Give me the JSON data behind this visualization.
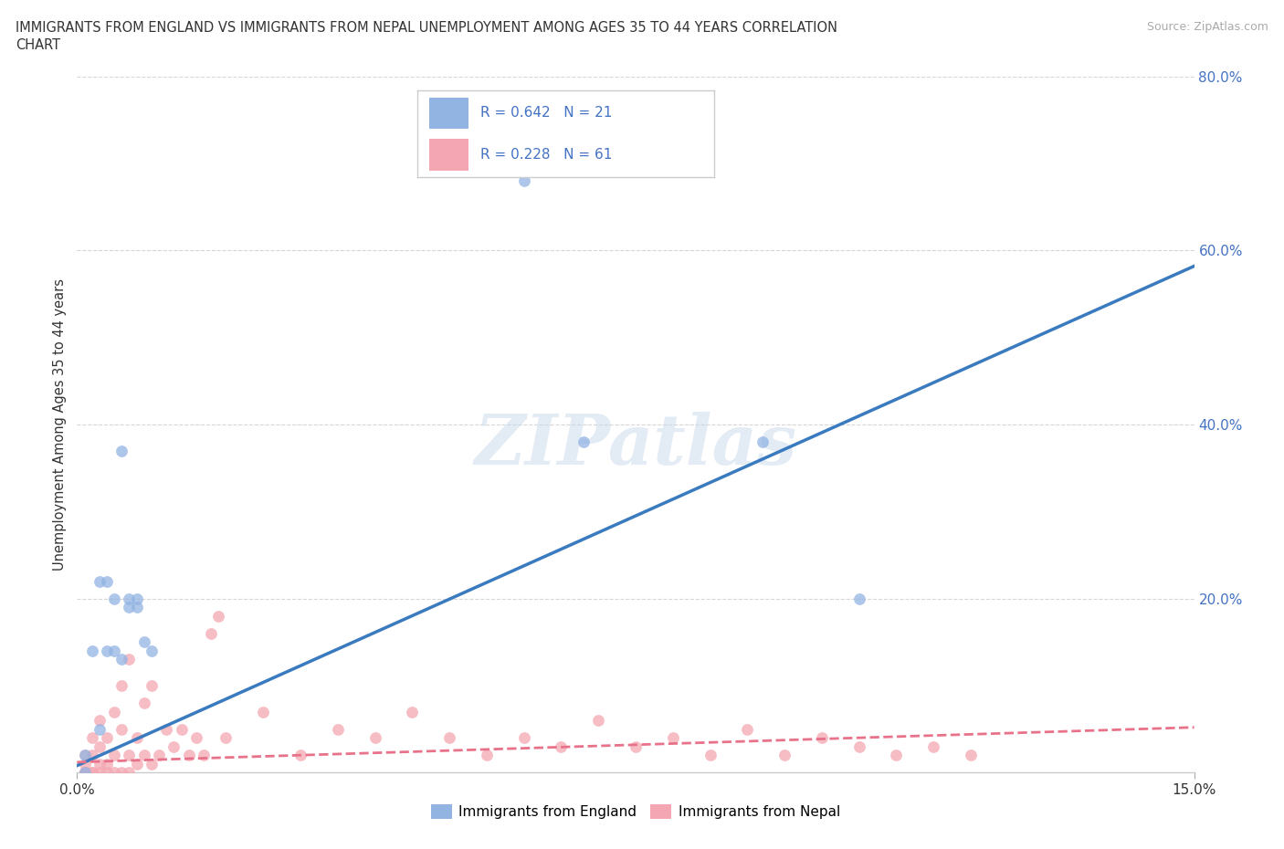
{
  "title_line1": "IMMIGRANTS FROM ENGLAND VS IMMIGRANTS FROM NEPAL UNEMPLOYMENT AMONG AGES 35 TO 44 YEARS CORRELATION",
  "title_line2": "CHART",
  "source": "Source: ZipAtlas.com",
  "ylabel": "Unemployment Among Ages 35 to 44 years",
  "legend_labels": [
    "Immigrants from England",
    "Immigrants from Nepal"
  ],
  "england_color": "#92b4e3",
  "nepal_color": "#f4a7b2",
  "england_line_color": "#3a7abf",
  "nepal_line_color": "#e8728a",
  "watermark": "ZIPatlas",
  "xlim": [
    0.0,
    0.15
  ],
  "ylim": [
    0.0,
    0.8
  ],
  "yticks": [
    0.0,
    0.2,
    0.4,
    0.6,
    0.8
  ],
  "ytick_labels": [
    "",
    "20.0%",
    "40.0%",
    "60.0%",
    "80.0%"
  ],
  "england_x": [
    0.001,
    0.001,
    0.002,
    0.003,
    0.003,
    0.004,
    0.004,
    0.005,
    0.005,
    0.006,
    0.006,
    0.007,
    0.007,
    0.008,
    0.008,
    0.009,
    0.01,
    0.06,
    0.068,
    0.092,
    0.105
  ],
  "england_y": [
    0.0,
    0.02,
    0.14,
    0.05,
    0.22,
    0.14,
    0.22,
    0.14,
    0.2,
    0.13,
    0.37,
    0.2,
    0.19,
    0.2,
    0.19,
    0.15,
    0.14,
    0.68,
    0.38,
    0.38,
    0.2
  ],
  "nepal_x": [
    0.001,
    0.001,
    0.001,
    0.001,
    0.001,
    0.002,
    0.002,
    0.002,
    0.002,
    0.003,
    0.003,
    0.003,
    0.003,
    0.004,
    0.004,
    0.004,
    0.005,
    0.005,
    0.005,
    0.006,
    0.006,
    0.006,
    0.007,
    0.007,
    0.007,
    0.008,
    0.008,
    0.009,
    0.009,
    0.01,
    0.01,
    0.011,
    0.012,
    0.013,
    0.014,
    0.015,
    0.016,
    0.017,
    0.018,
    0.019,
    0.02,
    0.025,
    0.03,
    0.035,
    0.04,
    0.045,
    0.05,
    0.055,
    0.06,
    0.065,
    0.07,
    0.075,
    0.08,
    0.085,
    0.09,
    0.095,
    0.1,
    0.105,
    0.11,
    0.115,
    0.12
  ],
  "nepal_y": [
    0.0,
    0.0,
    0.0,
    0.01,
    0.02,
    0.0,
    0.0,
    0.02,
    0.04,
    0.0,
    0.01,
    0.03,
    0.06,
    0.0,
    0.01,
    0.04,
    0.0,
    0.07,
    0.02,
    0.0,
    0.05,
    0.1,
    0.0,
    0.02,
    0.13,
    0.01,
    0.04,
    0.02,
    0.08,
    0.01,
    0.1,
    0.02,
    0.05,
    0.03,
    0.05,
    0.02,
    0.04,
    0.02,
    0.16,
    0.18,
    0.04,
    0.07,
    0.02,
    0.05,
    0.04,
    0.07,
    0.04,
    0.02,
    0.04,
    0.03,
    0.06,
    0.03,
    0.04,
    0.02,
    0.05,
    0.02,
    0.04,
    0.03,
    0.02,
    0.03,
    0.02
  ],
  "england_line_x": [
    0.0,
    0.15
  ],
  "england_line_y": [
    0.008,
    0.582
  ],
  "nepal_line_x": [
    0.0,
    0.15
  ],
  "nepal_line_y": [
    0.012,
    0.052
  ]
}
